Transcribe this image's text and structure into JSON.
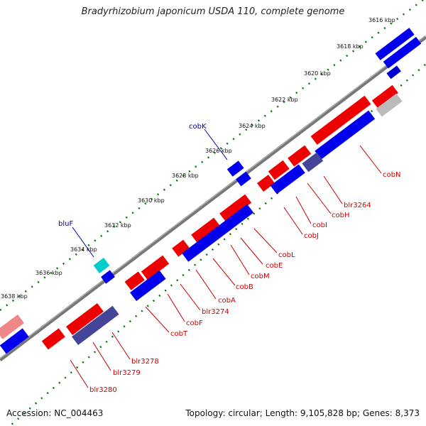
{
  "header": {
    "title": "Bradyrhizobium japonicum USDA 110, complete genome"
  },
  "footer": {
    "accession": "Accession: NC_004463",
    "topology": "Topology: circular; Length: 9,105,828 bp; Genes: 8,373"
  },
  "colors": {
    "forward_gene": "#ff0000",
    "reverse_gene": "#0000ff",
    "highlight_gene": "#00cccc",
    "backbone": "#888888",
    "tick_dots": "#007700",
    "gene_label_red": "#cc0000",
    "gene_label_blue": "#000099"
  },
  "map": {
    "ticks": [
      "3616 kbp",
      "3618 kbp",
      "3620 kbp",
      "3622 kbp",
      "3624 kbp",
      "3626 kbp",
      "3628 kbp",
      "3630 kbp",
      "3632 kbp",
      "3634 kbp",
      "3636 kbp",
      "3638 kbp"
    ],
    "gene_labels": [
      "cobN",
      "blr3264",
      "cobH",
      "cobI",
      "cobJ",
      "cobL",
      "cobE",
      "cobM",
      "cobB",
      "cobA",
      "blr3274",
      "cobF",
      "cobT",
      "blr3278",
      "blr3279",
      "blr3280"
    ],
    "outer_labels": [
      "cobK",
      "bluF"
    ]
  }
}
